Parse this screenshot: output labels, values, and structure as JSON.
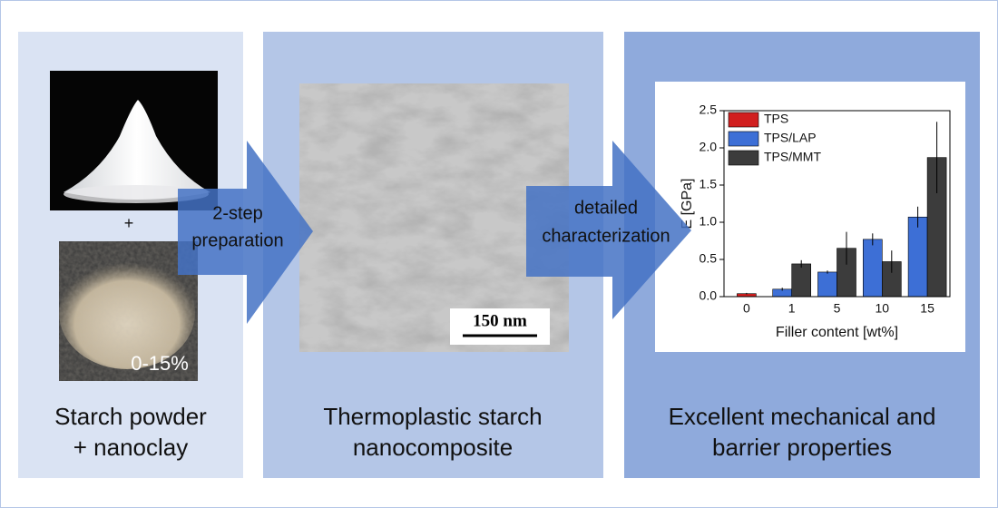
{
  "plus": "+",
  "filler_label": "0-15%",
  "scale_bar": "150 nm",
  "panels": [
    {
      "caption": [
        "Starch powder",
        "+ nanoclay"
      ]
    },
    {
      "caption": [
        "Thermoplastic starch",
        "nanocomposite"
      ]
    },
    {
      "caption": [
        "Excellent mechanical and",
        "barrier properties"
      ]
    }
  ],
  "arrows": [
    {
      "label": [
        "2-step",
        "preparation"
      ]
    },
    {
      "label": [
        "detailed",
        "characterization"
      ]
    }
  ],
  "chart_data": {
    "type": "bar",
    "xlabel": "Filler content [wt%]",
    "ylabel": "E [GPa]",
    "categories": [
      "0",
      "1",
      "5",
      "10",
      "15"
    ],
    "series": [
      {
        "name": "TPS",
        "color": "#d11f1f",
        "values": [
          0.04,
          null,
          null,
          null,
          null
        ],
        "errors": [
          0.01,
          null,
          null,
          null,
          null
        ]
      },
      {
        "name": "TPS/LAP",
        "color": "#3d6fd6",
        "values": [
          null,
          0.1,
          0.33,
          0.77,
          1.07
        ],
        "errors": [
          null,
          0.02,
          0.02,
          0.08,
          0.14
        ]
      },
      {
        "name": "TPS/MMT",
        "color": "#3c3c3c",
        "values": [
          null,
          0.44,
          0.65,
          0.47,
          1.87
        ],
        "errors": [
          null,
          0.05,
          0.22,
          0.15,
          0.48
        ]
      }
    ],
    "ylim": [
      0,
      2.5
    ],
    "yticks": [
      {
        "value": 0,
        "label": "0.0"
      },
      0.5,
      {
        "value": 1,
        "label": "1.0"
      },
      1.5,
      {
        "value": 2,
        "label": "2.0"
      },
      2.5
    ],
    "legend": "upper left"
  }
}
